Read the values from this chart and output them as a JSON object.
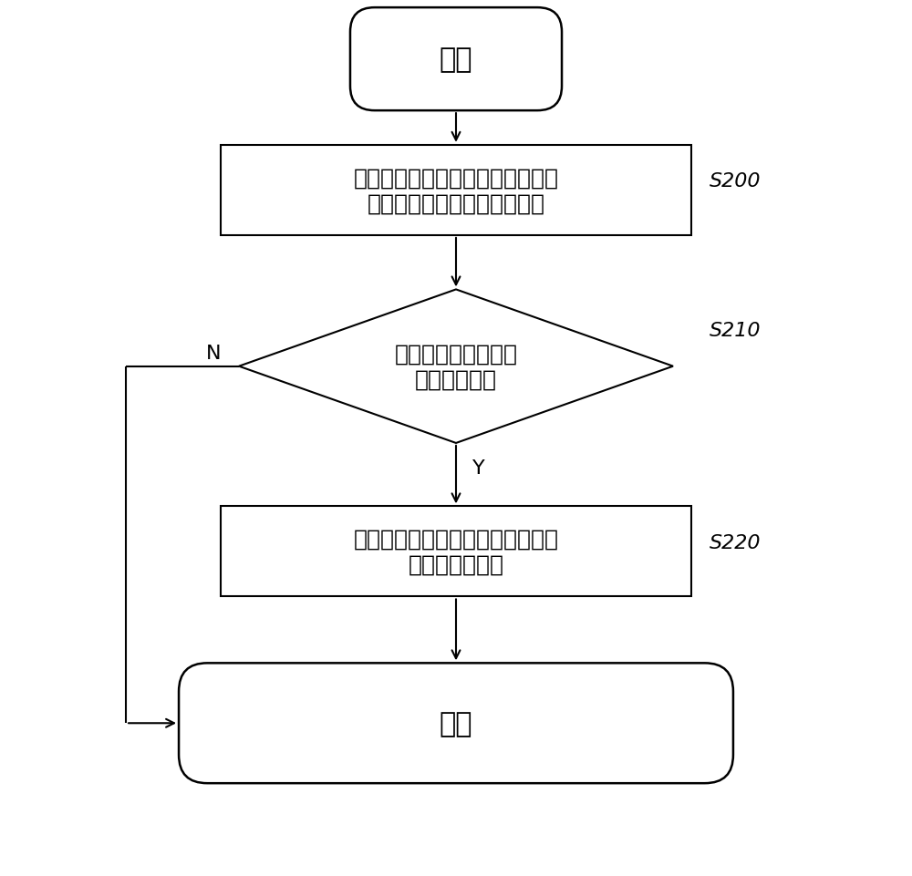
{
  "bg_color": "#ffffff",
  "line_color": "#000000",
  "box_border_color": "#000000",
  "text_color": "#000000",
  "title_start": "开始",
  "title_end": "结束",
  "box_s200_text": "将所有工作磁盘接入软磁盘阵列系\n统，启动所述软磁盘阵列系统",
  "box_s210_text": "所述软磁盘阵列系统\n能否正常工作",
  "box_s220_text": "选取软磁盘列阵中一工作磁盘为当\n前模拟故障磁盘",
  "label_s200": "S200",
  "label_s210": "S210",
  "label_s220": "S220",
  "label_N": "N",
  "label_Y": "Y",
  "font_size_main": 22,
  "font_size_label": 16,
  "font_size_branch": 16,
  "font_size_box": 18
}
